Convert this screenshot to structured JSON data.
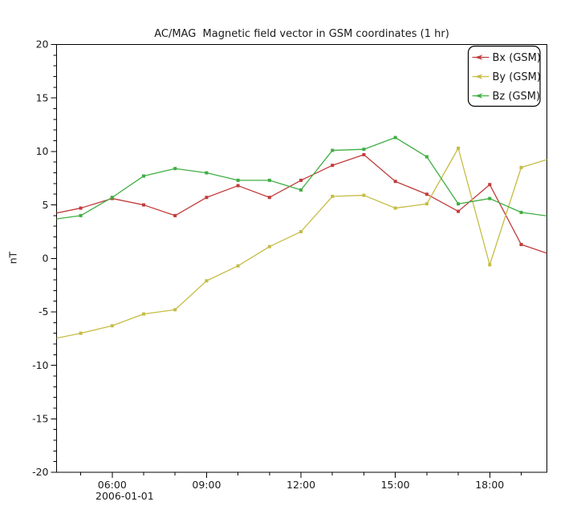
{
  "title": "AC/MAG  Magnetic field vector in GSM coordinates (1 hr)",
  "y_axis": {
    "label": "nT",
    "major_ticks": [
      20,
      15,
      10,
      5,
      0,
      -5,
      -10,
      -15,
      -20
    ],
    "minor_step": 1
  },
  "x_axis": {
    "date_label": "2006-01-01",
    "major_ticks": [
      {
        "hour": 6,
        "label": "06:00"
      },
      {
        "hour": 9,
        "label": "09:00"
      },
      {
        "hour": 12,
        "label": "12:00"
      },
      {
        "hour": 15,
        "label": "15:00"
      },
      {
        "hour": 18,
        "label": "18:00"
      }
    ],
    "minor_tick_hours": [
      5,
      7,
      8,
      10,
      11,
      13,
      14,
      16,
      17,
      19
    ]
  },
  "legend": {
    "position": "top-right",
    "entries": [
      {
        "label": "Bx (GSM)",
        "color": "#c23b3b"
      },
      {
        "label": "By (GSM)",
        "color": "#c6bc45"
      },
      {
        "label": "Bz (GSM)",
        "color": "#3fae44"
      }
    ]
  },
  "chart_data": {
    "type": "line",
    "title": "AC/MAG  Magnetic field vector in GSM coordinates (1 hr)",
    "xlabel": "2006-01-01",
    "ylabel": "nT",
    "x_hours": [
      4,
      5,
      6,
      7,
      8,
      9,
      10,
      11,
      12,
      13,
      14,
      15,
      16,
      17,
      18,
      19,
      20
    ],
    "series": [
      {
        "name": "Bx (GSM)",
        "color": "#c23b3b",
        "values": [
          4.1,
          4.7,
          5.6,
          5.0,
          4.0,
          5.7,
          6.8,
          5.7,
          7.3,
          8.7,
          9.7,
          7.2,
          6.0,
          4.4,
          6.9,
          1.3,
          0.3
        ]
      },
      {
        "name": "By (GSM)",
        "color": "#c6bc45",
        "values": [
          -7.6,
          -7.0,
          -6.3,
          -5.2,
          -4.8,
          -2.1,
          -0.7,
          1.1,
          2.5,
          5.8,
          5.9,
          4.7,
          5.1,
          10.3,
          -0.6,
          8.5,
          9.4
        ]
      },
      {
        "name": "Bz (GSM)",
        "color": "#3fae44",
        "values": [
          3.6,
          4.0,
          5.7,
          7.7,
          8.4,
          8.0,
          7.3,
          7.3,
          6.4,
          10.1,
          10.2,
          11.3,
          9.5,
          5.1,
          5.6,
          4.3,
          3.9
        ]
      }
    ],
    "xlim_hours": [
      4.233,
      19.817
    ],
    "ylim": [
      -20,
      20
    ],
    "grid": false,
    "legend_position": "top-right",
    "markers": "square"
  }
}
